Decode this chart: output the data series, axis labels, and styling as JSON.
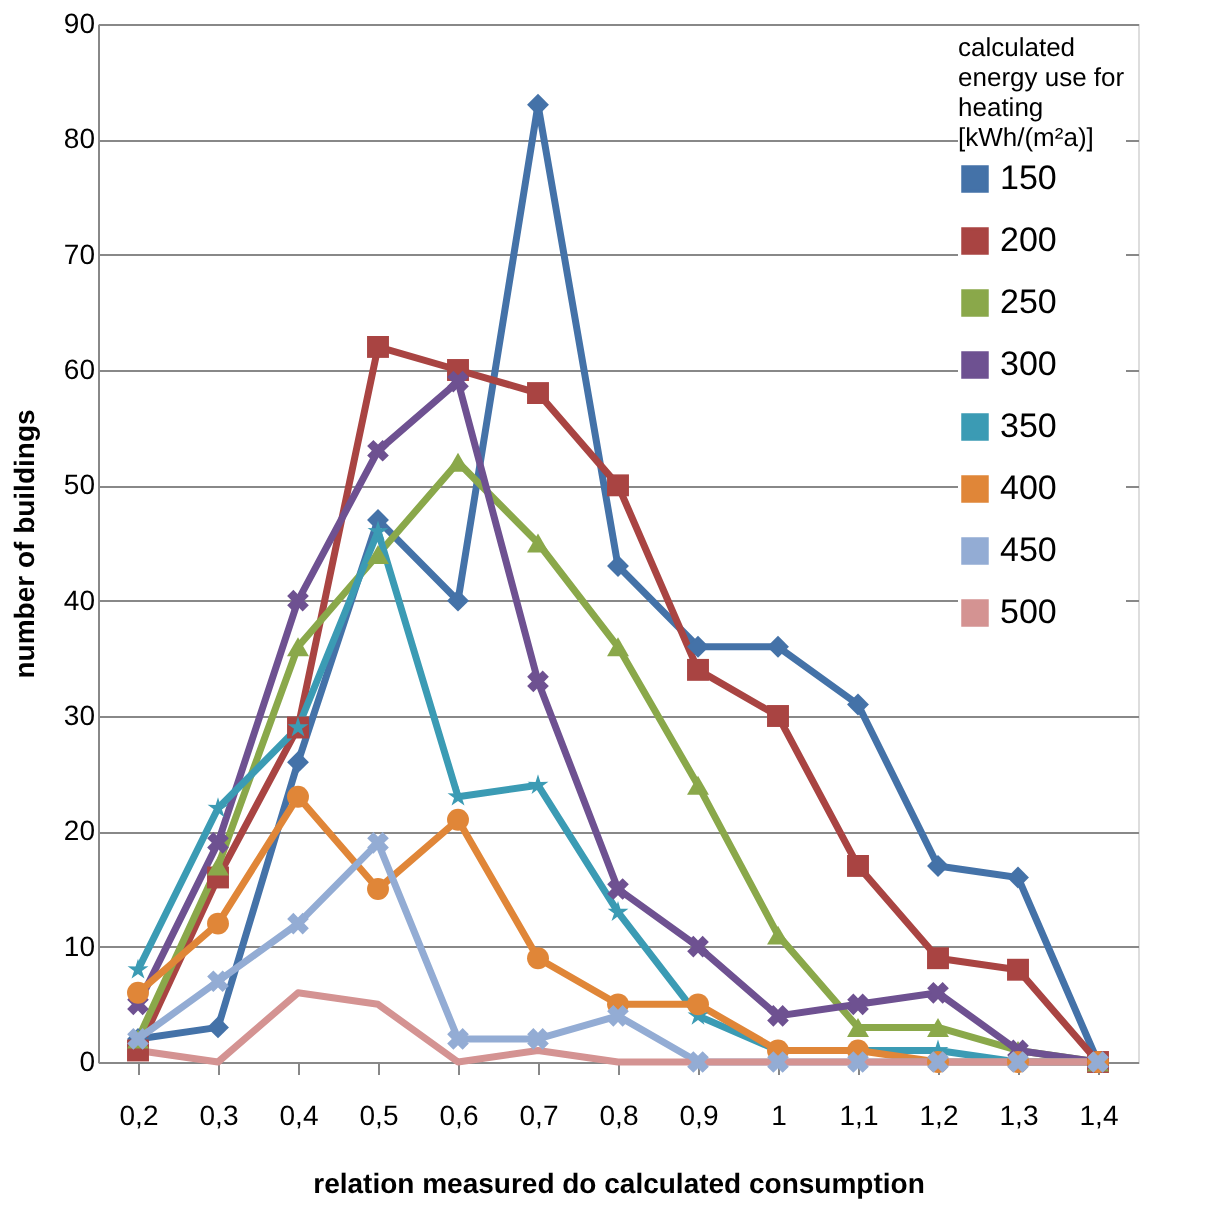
{
  "chart_data": {
    "type": "line",
    "xlabel": "relation measured do calculated  consumption",
    "ylabel": "number of buildings",
    "legend_title": "calculated energy use for heating [kWh/(m²a)]",
    "legend": "top right",
    "grid": "y",
    "ylim": [
      0,
      90
    ],
    "yticks": [
      0,
      10,
      20,
      30,
      40,
      50,
      60,
      70,
      80,
      90
    ],
    "categories": [
      "0,2",
      "0,3",
      "0,4",
      "0,5",
      "0,6",
      "0,7",
      "0,8",
      "0,9",
      "1",
      "1,1",
      "1,2",
      "1,3",
      "1,4"
    ],
    "series": [
      {
        "name": "150",
        "color": "#4472a8",
        "marker": "diamond",
        "values": [
          2,
          3,
          26,
          47,
          40,
          83,
          43,
          36,
          36,
          31,
          17,
          16,
          0
        ]
      },
      {
        "name": "200",
        "color": "#a94442",
        "marker": "square",
        "values": [
          1,
          16,
          29,
          62,
          60,
          58,
          50,
          34,
          30,
          17,
          9,
          8,
          0
        ]
      },
      {
        "name": "250",
        "color": "#8aa84a",
        "marker": "triangle",
        "values": [
          2,
          17,
          36,
          44,
          52,
          45,
          36,
          24,
          11,
          3,
          3,
          1,
          0
        ]
      },
      {
        "name": "300",
        "color": "#6e5191",
        "marker": "cross",
        "values": [
          5,
          19,
          40,
          53,
          59,
          33,
          15,
          10,
          4,
          5,
          6,
          1,
          0
        ]
      },
      {
        "name": "350",
        "color": "#3b9bb4",
        "marker": "star",
        "values": [
          8,
          22,
          29,
          46,
          23,
          24,
          13,
          4,
          1,
          1,
          1,
          0,
          0
        ]
      },
      {
        "name": "400",
        "color": "#e08638",
        "marker": "circle",
        "values": [
          6,
          12,
          23,
          15,
          21,
          9,
          5,
          5,
          1,
          1,
          0,
          0,
          0
        ]
      },
      {
        "name": "450",
        "color": "#93acd4",
        "marker": "cross",
        "values": [
          2,
          7,
          12,
          19,
          2,
          2,
          4,
          0,
          0,
          0,
          0,
          0,
          0
        ]
      },
      {
        "name": "500",
        "color": "#d49392",
        "marker": "none",
        "values": [
          1,
          0,
          6,
          5,
          0,
          1,
          0,
          0,
          0,
          0,
          0,
          0,
          0
        ]
      }
    ]
  }
}
